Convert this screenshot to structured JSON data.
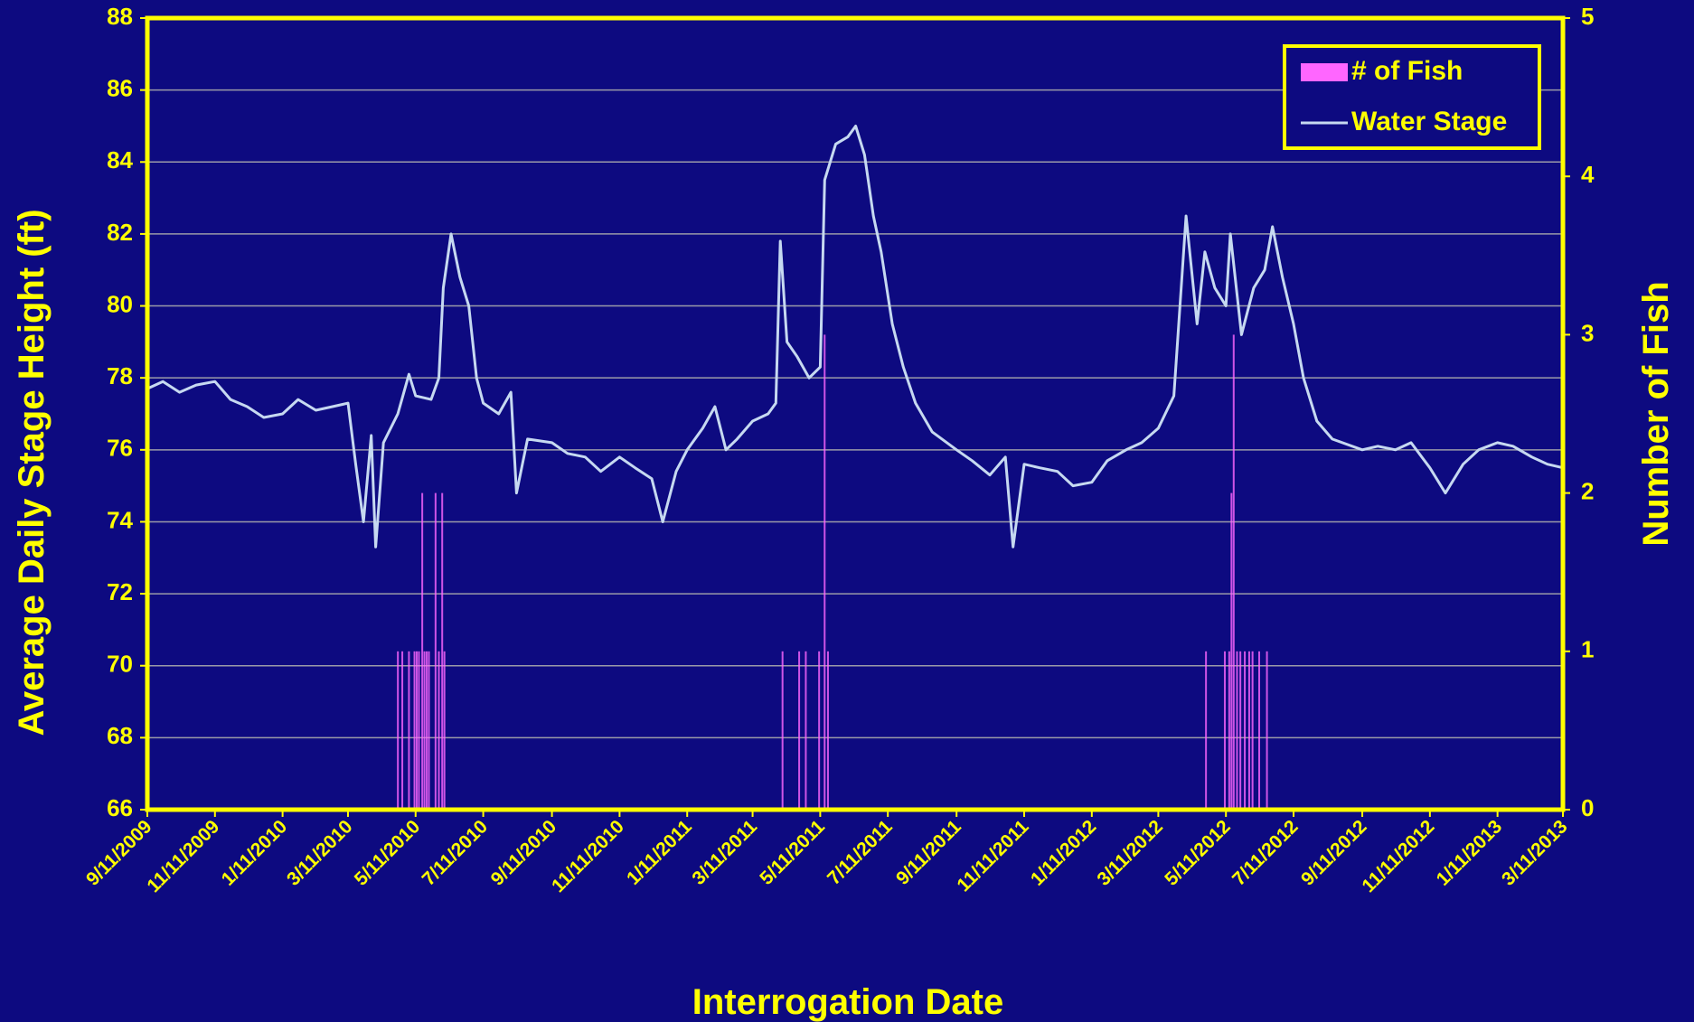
{
  "chart_data": {
    "type": "line",
    "xlabel": "Interrogation Date",
    "ylabel": "Average Daily Stage Height (ft)",
    "y2label": "Number of Fish",
    "xlim": [
      "9/11/2009",
      "3/11/2013"
    ],
    "xticks": [
      "9/11/2009",
      "11/11/2009",
      "1/11/2010",
      "3/11/2010",
      "5/11/2010",
      "7/11/2010",
      "9/11/2010",
      "11/11/2010",
      "1/11/2011",
      "3/11/2011",
      "5/11/2011",
      "7/11/2011",
      "9/11/2011",
      "11/11/2011",
      "1/11/2012",
      "3/11/2012",
      "5/11/2012",
      "7/11/2012",
      "9/11/2012",
      "11/11/2012",
      "1/11/2013",
      "3/11/2013"
    ],
    "ylim": [
      66,
      88
    ],
    "yticks": [
      66,
      68,
      70,
      72,
      74,
      76,
      78,
      80,
      82,
      84,
      86,
      88
    ],
    "y2lim": [
      0,
      5
    ],
    "y2ticks": [
      0,
      1,
      2,
      3,
      4,
      5
    ],
    "grid": true,
    "legend": "upper right",
    "series": [
      {
        "name": "# of Fish",
        "type": "bar",
        "axis": "y2",
        "color": "#ff66ff",
        "x": [
          "4/25/2010",
          "4/29/2010",
          "5/5/2010",
          "5/10/2010",
          "5/12/2010",
          "5/14/2010",
          "5/17/2010",
          "5/19/2010",
          "5/21/2010",
          "5/23/2010",
          "5/29/2010",
          "6/1/2010",
          "6/4/2010",
          "6/6/2010",
          "4/7/2011",
          "4/22/2011",
          "4/28/2011",
          "5/10/2011",
          "5/15/2011",
          "5/18/2011",
          "4/23/2012",
          "5/10/2012",
          "5/14/2012",
          "5/16/2012",
          "5/18/2012",
          "5/21/2012",
          "5/24/2012",
          "5/28/2012",
          "6/1/2012",
          "6/4/2012",
          "6/10/2012",
          "6/17/2012"
        ],
        "values": [
          1,
          1,
          1,
          1,
          1,
          1,
          2,
          1,
          1,
          1,
          2,
          1,
          2,
          1,
          1,
          1,
          1,
          1,
          3,
          1,
          1,
          1,
          1,
          2,
          3,
          1,
          1,
          1,
          1,
          1,
          1,
          1
        ]
      },
      {
        "name": "Water Stage",
        "type": "line",
        "color": "#c6d9f1",
        "x": [
          "9/11/2009",
          "9/25/2009",
          "10/10/2009",
          "10/25/2009",
          "11/11/2009",
          "11/25/2009",
          "12/10/2009",
          "12/25/2009",
          "1/11/2010",
          "1/25/2010",
          "2/10/2010",
          "2/25/2010",
          "3/11/2010",
          "3/18/2010",
          "3/25/2010",
          "4/1/2010",
          "4/5/2010",
          "4/12/2010",
          "4/25/2010",
          "5/5/2010",
          "5/11/2010",
          "5/25/2010",
          "6/1/2010",
          "6/5/2010",
          "6/12/2010",
          "6/20/2010",
          "6/28/2010",
          "7/5/2010",
          "7/11/2010",
          "7/25/2010",
          "8/5/2010",
          "8/10/2010",
          "8/20/2010",
          "9/11/2010",
          "9/25/2010",
          "10/11/2010",
          "10/25/2010",
          "11/11/2010",
          "11/25/2010",
          "12/10/2010",
          "12/20/2010",
          "1/1/2011",
          "1/11/2011",
          "1/25/2011",
          "2/5/2011",
          "2/15/2011",
          "2/25/2011",
          "3/11/2011",
          "3/25/2011",
          "4/1/2011",
          "4/5/2011",
          "4/11/2011",
          "4/20/2011",
          "5/1/2011",
          "5/11/2011",
          "5/15/2011",
          "5/25/2011",
          "6/5/2011",
          "6/12/2011",
          "6/20/2011",
          "6/28/2011",
          "7/5/2011",
          "7/15/2011",
          "7/25/2011",
          "8/5/2011",
          "8/20/2011",
          "9/11/2011",
          "9/25/2011",
          "10/11/2011",
          "10/25/2011",
          "11/1/2011",
          "11/11/2011",
          "11/25/2011",
          "12/11/2011",
          "12/25/2011",
          "1/11/2012",
          "1/25/2012",
          "2/11/2012",
          "2/25/2012",
          "3/11/2012",
          "3/25/2012",
          "4/5/2012",
          "4/15/2012",
          "4/22/2012",
          "5/1/2012",
          "5/11/2012",
          "5/15/2012",
          "5/25/2012",
          "6/5/2012",
          "6/15/2012",
          "6/22/2012",
          "7/1/2012",
          "7/11/2012",
          "7/20/2012",
          "8/1/2012",
          "8/15/2012",
          "9/11/2012",
          "9/25/2012",
          "10/11/2012",
          "10/25/2012",
          "11/11/2012",
          "11/25/2012",
          "12/11/2012",
          "12/25/2012",
          "1/11/2013",
          "1/25/2013",
          "2/11/2013",
          "2/25/2013",
          "3/11/2013"
        ],
        "values": [
          77.7,
          77.9,
          77.6,
          77.8,
          77.9,
          77.4,
          77.2,
          76.9,
          77.0,
          77.4,
          77.1,
          77.2,
          77.3,
          75.6,
          74.0,
          76.4,
          73.3,
          76.2,
          77.0,
          78.1,
          77.5,
          77.4,
          78.0,
          80.5,
          82.0,
          80.8,
          80.0,
          78.0,
          77.3,
          77.0,
          77.6,
          74.8,
          76.3,
          76.2,
          75.9,
          75.8,
          75.4,
          75.8,
          75.5,
          75.2,
          74.0,
          75.4,
          76.0,
          76.6,
          77.2,
          76.0,
          76.3,
          76.8,
          77.0,
          77.3,
          81.8,
          79.0,
          78.6,
          78.0,
          78.3,
          83.5,
          84.5,
          84.7,
          85.0,
          84.2,
          82.5,
          81.5,
          79.5,
          78.3,
          77.3,
          76.5,
          76.0,
          75.7,
          75.3,
          75.8,
          73.3,
          75.6,
          75.5,
          75.4,
          75.0,
          75.1,
          75.7,
          76.0,
          76.2,
          76.6,
          77.5,
          82.5,
          79.5,
          81.5,
          80.5,
          80.0,
          82.0,
          79.2,
          80.5,
          81.0,
          82.2,
          80.8,
          79.5,
          78.0,
          76.8,
          76.3,
          76.0,
          76.1,
          76.0,
          76.2,
          75.5,
          74.8,
          75.6,
          76.0,
          76.2,
          76.1,
          75.8,
          75.6,
          75.5
        ]
      }
    ]
  }
}
